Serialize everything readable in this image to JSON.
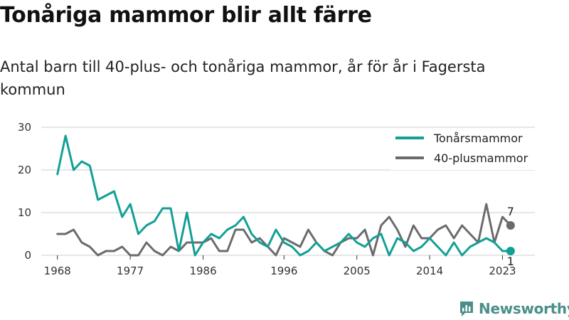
{
  "title": "Tonåriga mammor blir allt färre",
  "subtitle": "Antal barn till 40-plus- och tonåriga mammor, år för år i Fagersta kommun",
  "brand": "Newsworthy",
  "colors": {
    "teen": "#12a095",
    "forty": "#6b6b6e",
    "grid": "#cccccc"
  },
  "chart_data": {
    "type": "line",
    "title": "Tonåriga mammor blir allt färre",
    "subtitle": "Antal barn till 40-plus- och tonåriga mammor, år för år i Fagersta kommun",
    "x": [
      1968,
      1969,
      1970,
      1971,
      1972,
      1973,
      1974,
      1975,
      1976,
      1977,
      1978,
      1979,
      1980,
      1981,
      1982,
      1983,
      1984,
      1985,
      1986,
      1987,
      1988,
      1989,
      1990,
      1991,
      1992,
      1993,
      1994,
      1995,
      1996,
      1997,
      1998,
      1999,
      2000,
      2001,
      2002,
      2003,
      2004,
      2005,
      2006,
      2007,
      2008,
      2009,
      2010,
      2011,
      2012,
      2013,
      2014,
      2015,
      2016,
      2017,
      2018,
      2019,
      2020,
      2021,
      2022,
      2023,
      2024
    ],
    "series": [
      {
        "name": "Tonårsmammor",
        "color": "#12a095",
        "values": [
          19,
          28,
          20,
          22,
          21,
          13,
          14,
          15,
          9,
          12,
          5,
          7,
          8,
          11,
          11,
          1,
          10,
          0,
          3,
          5,
          4,
          6,
          7,
          9,
          5,
          3,
          2,
          6,
          3,
          2,
          0,
          1,
          3,
          1,
          2,
          3,
          5,
          3,
          2,
          4,
          5,
          0,
          4,
          3,
          1,
          2,
          4,
          2,
          0,
          3,
          0,
          2,
          3,
          4,
          3,
          1,
          1
        ]
      },
      {
        "name": "40-plusmammor",
        "color": "#6b6b6e",
        "values": [
          5,
          5,
          6,
          3,
          2,
          0,
          1,
          1,
          2,
          0,
          0,
          3,
          1,
          0,
          2,
          1,
          3,
          3,
          3,
          4,
          1,
          1,
          6,
          6,
          3,
          4,
          2,
          0,
          4,
          3,
          2,
          6,
          3,
          1,
          0,
          3,
          4,
          4,
          6,
          0,
          7,
          9,
          6,
          2,
          7,
          4,
          4,
          6,
          7,
          4,
          7,
          5,
          3,
          12,
          3,
          9,
          7
        ]
      }
    ],
    "xticks": [
      "1968",
      "1977",
      "1986",
      "1996",
      "2005",
      "2014",
      "2023"
    ],
    "yticks": [
      "0",
      "10",
      "20",
      "30"
    ],
    "ylim": [
      0,
      30
    ],
    "xlim": [
      1966,
      2027
    ],
    "grid": "horizontal",
    "legend": "top-right",
    "end_labels": [
      {
        "series": "40-plusmammor",
        "text": "7"
      },
      {
        "series": "Tonårsmammor",
        "text": "1"
      }
    ]
  }
}
